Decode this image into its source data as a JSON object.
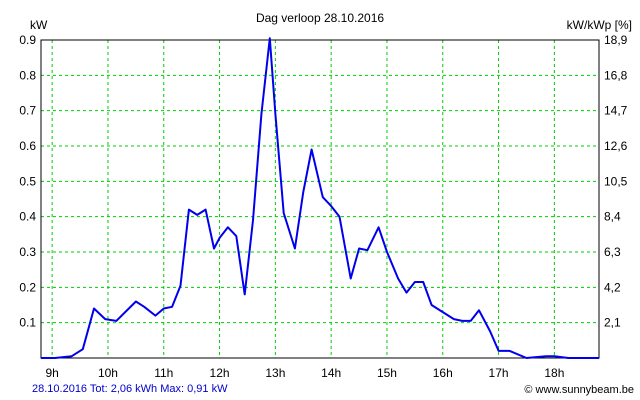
{
  "chart_data": {
    "type": "line",
    "title": "Dag  verloop 28.10.2016",
    "ylabel_left": "kW",
    "ylabel_right": "kW/kWp [%]",
    "ylim": [
      0,
      0.9
    ],
    "y2lim": [
      0,
      18.9
    ],
    "xlim": [
      8.8,
      18.8
    ],
    "x_ticks": [
      "9h",
      "10h",
      "11h",
      "12h",
      "13h",
      "14h",
      "15h",
      "16h",
      "17h",
      "18h"
    ],
    "x_tick_values": [
      9,
      10,
      11,
      12,
      13,
      14,
      15,
      16,
      17,
      18
    ],
    "y_ticks": [
      "0.1",
      "0.2",
      "0.3",
      "0.4",
      "0.5",
      "0.6",
      "0.7",
      "0.8",
      "0.9"
    ],
    "y_tick_values": [
      0.1,
      0.2,
      0.3,
      0.4,
      0.5,
      0.6,
      0.7,
      0.8,
      0.9
    ],
    "y2_ticks": [
      "2,1",
      "4,2",
      "6,3",
      "8,4",
      "10,5",
      "12,6",
      "14,7",
      "16,8",
      "18,9"
    ],
    "grid": true,
    "series": [
      {
        "x": [
          8.8,
          9.05,
          9.35,
          9.55,
          9.75,
          9.95,
          10.15,
          10.5,
          10.65,
          10.85,
          11.0,
          11.15,
          11.3,
          11.45,
          11.6,
          11.75,
          11.9,
          12.0,
          12.15,
          12.3,
          12.45,
          12.6,
          12.75,
          12.9,
          13.0,
          13.15,
          13.35,
          13.5,
          13.65,
          13.85,
          14.0,
          14.15,
          14.35,
          14.5,
          14.65,
          14.85,
          15.0,
          15.2,
          15.35,
          15.5,
          15.65,
          15.8,
          16.0,
          16.2,
          16.35,
          16.5,
          16.65,
          16.85,
          17.0,
          17.2,
          17.5,
          17.85,
          18.0,
          18.25,
          18.8
        ],
        "values": [
          0.0,
          0.0,
          0.005,
          0.025,
          0.14,
          0.11,
          0.105,
          0.16,
          0.145,
          0.12,
          0.14,
          0.145,
          0.205,
          0.42,
          0.405,
          0.42,
          0.31,
          0.34,
          0.37,
          0.345,
          0.18,
          0.39,
          0.69,
          0.905,
          0.69,
          0.41,
          0.31,
          0.47,
          0.59,
          0.455,
          0.43,
          0.4,
          0.225,
          0.31,
          0.305,
          0.37,
          0.3,
          0.225,
          0.185,
          0.215,
          0.215,
          0.15,
          0.13,
          0.11,
          0.105,
          0.105,
          0.135,
          0.075,
          0.02,
          0.02,
          0.0,
          0.005,
          0.005,
          0.0,
          0.0
        ],
        "color": "#0000ee"
      }
    ]
  },
  "footer": {
    "summary": "28.10.2016 Tot: 2,06 kWh Max: 0,91 kW",
    "source": "© www.sunnybeam.be"
  },
  "colors": {
    "grid": "#00cc00",
    "axis": "#000000",
    "line": "#0000ee",
    "summary_text": "#0000cc"
  }
}
